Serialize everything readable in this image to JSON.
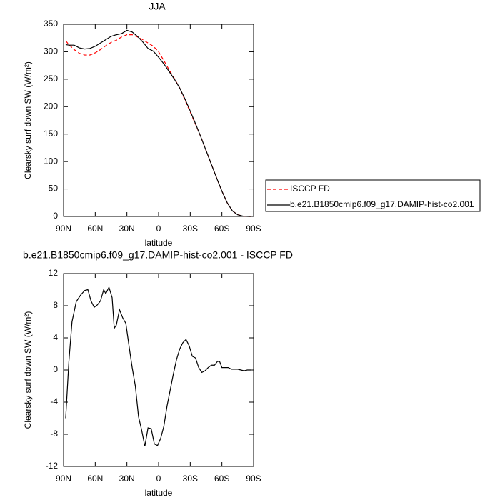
{
  "chart_data": [
    {
      "type": "line",
      "title": "JJA",
      "ylabel": "Clearsky surf down SW (W/m²)",
      "xlabel": "latitude",
      "x": [
        88,
        85,
        80,
        75,
        70,
        65,
        60,
        55,
        50,
        45,
        40,
        35,
        30,
        25,
        20,
        15,
        10,
        5,
        0,
        -5,
        -10,
        -15,
        -20,
        -25,
        -30,
        -35,
        -40,
        -45,
        -50,
        -55,
        -60,
        -65,
        -70,
        -75,
        -80,
        -85,
        -88
      ],
      "series": [
        {
          "name": "ISCCP FD",
          "color": "#ff0000",
          "line_style": "dashed",
          "values": [
            320,
            313,
            304,
            297,
            294,
            294,
            298,
            304,
            311,
            317,
            321,
            327,
            331,
            331,
            327,
            322,
            316,
            310,
            300,
            284,
            267,
            251,
            234,
            212,
            190,
            168,
            145,
            120,
            95,
            70,
            46,
            25,
            10,
            3,
            0.5,
            0,
            0
          ]
        },
        {
          "name": "b.e21.B1850cmip6.f09_g17.DAMIP-hist-co2.001",
          "color": "#000000",
          "line_style": "solid",
          "values": [
            313,
            312,
            312,
            307,
            305,
            306,
            310,
            316,
            322,
            328,
            331,
            333,
            339,
            336,
            328,
            318,
            306,
            301,
            290,
            278,
            264,
            250,
            234,
            214,
            192,
            169,
            145,
            120,
            95,
            70,
            46,
            25,
            10,
            3,
            0.5,
            0,
            0
          ]
        }
      ],
      "xlim": [
        90,
        -90
      ],
      "xticks": [
        {
          "value": 90,
          "label": "90N"
        },
        {
          "value": 60,
          "label": "60N"
        },
        {
          "value": 30,
          "label": "30N"
        },
        0,
        {
          "value": -30,
          "label": "30S"
        },
        {
          "value": -60,
          "label": "60S"
        },
        {
          "value": -90,
          "label": "90S"
        }
      ],
      "ylim": [
        0,
        350
      ],
      "yticks": [
        0,
        50,
        100,
        150,
        200,
        250,
        300,
        350
      ],
      "legend": "outside right"
    },
    {
      "type": "line",
      "title": "b.e21.B1850cmip6.f09_g17.DAMIP-hist-co2.001 - ISCCP FD",
      "ylabel": "Clearsky surf down SW (W/m²)",
      "xlabel": "latitude",
      "x": [
        88,
        85,
        82,
        78,
        74,
        70,
        67,
        64,
        61,
        58,
        55,
        52,
        50,
        47,
        44,
        42,
        40,
        37,
        34,
        31,
        28,
        25,
        22,
        19,
        16,
        13,
        10,
        7,
        4,
        1,
        -2,
        -5,
        -8,
        -11,
        -14,
        -17,
        -20,
        -23,
        -26,
        -29,
        -32,
        -35,
        -38,
        -41,
        -44,
        -47,
        -50,
        -53,
        -56,
        -58,
        -60,
        -63,
        -66,
        -69,
        -72,
        -75,
        -78,
        -81,
        -84,
        -88
      ],
      "series": [
        {
          "color": "#000000",
          "line_style": "solid",
          "values": [
            -6,
            1,
            6,
            8.5,
            9.3,
            9.9,
            10,
            8.6,
            7.8,
            8.1,
            8.6,
            10,
            9.5,
            10.3,
            9,
            5.2,
            5.6,
            7.5,
            6.5,
            5.8,
            3,
            0.3,
            -2,
            -5.8,
            -7.5,
            -9.5,
            -7.2,
            -7.3,
            -9.2,
            -9.4,
            -8.5,
            -7,
            -4.5,
            -2.5,
            -0.5,
            1.3,
            2.6,
            3.4,
            3.8,
            3,
            1.7,
            1.5,
            0.3,
            -0.3,
            -0.1,
            0.3,
            0.6,
            0.6,
            1.1,
            1,
            0.3,
            0.3,
            0.3,
            0.1,
            0.1,
            0.1,
            0,
            -0.1,
            0,
            0
          ]
        }
      ],
      "xlim": [
        90,
        -90
      ],
      "xticks": [
        {
          "value": 90,
          "label": "90N"
        },
        {
          "value": 60,
          "label": "60N"
        },
        {
          "value": 30,
          "label": "30N"
        },
        0,
        {
          "value": -30,
          "label": "30S"
        },
        {
          "value": -60,
          "label": "60S"
        },
        {
          "value": -90,
          "label": "90S"
        }
      ],
      "ylim": [
        -12,
        12
      ],
      "yticks": [
        -12,
        -8,
        -4,
        0,
        4,
        8,
        12
      ]
    }
  ]
}
